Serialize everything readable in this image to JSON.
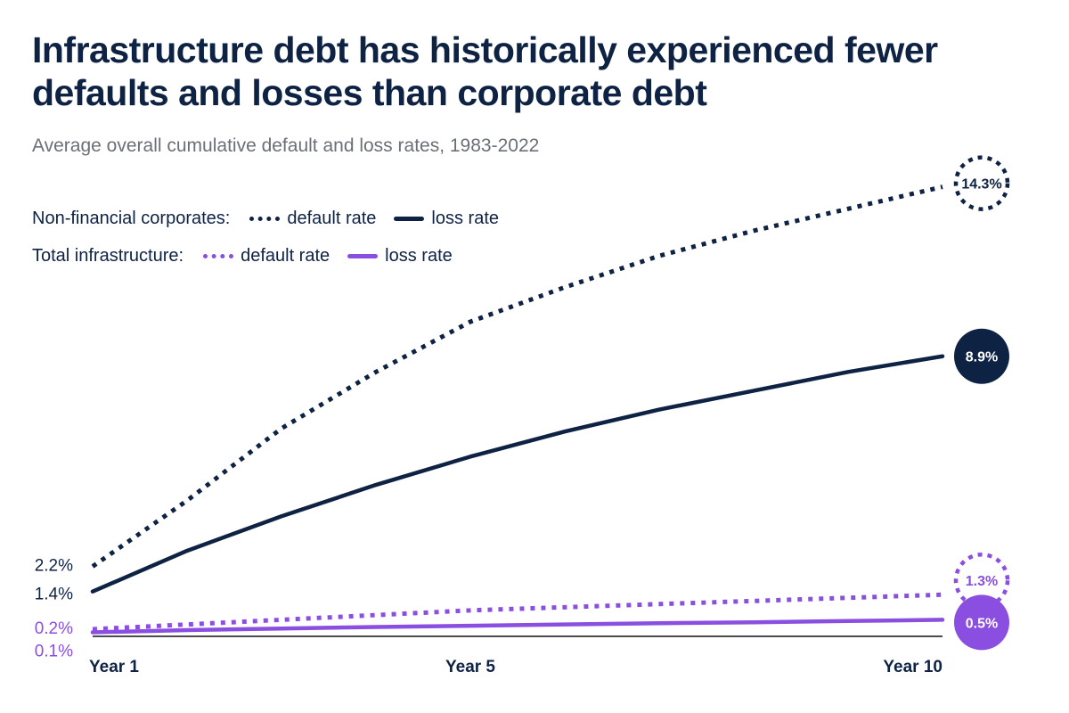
{
  "header": {
    "title": "Infrastructure debt has historically experienced fewer defaults and losses than corporate debt",
    "subtitle": "Average overall cumulative default and loss rates, 1983-2022"
  },
  "legend": {
    "groups": [
      {
        "label": "Non-financial corporates:",
        "default_label": "default rate",
        "loss_label": "loss rate",
        "color": "#0e2244"
      },
      {
        "label": "Total infrastructure:",
        "default_label": "default rate",
        "loss_label": "loss rate",
        "color": "#8a4fe0"
      }
    ]
  },
  "chart_data": {
    "type": "line",
    "x": [
      1,
      2,
      3,
      4,
      5,
      6,
      7,
      8,
      9,
      10
    ],
    "x_tick_labels": {
      "1": "Year 1",
      "5": "Year 5",
      "10": "Year 10"
    },
    "ylim": [
      0,
      15
    ],
    "grid": false,
    "series": [
      {
        "group": "Non-financial corporates",
        "metric": "default rate",
        "style": "dotted",
        "color": "#0e2244",
        "values": [
          2.2,
          4.3,
          6.6,
          8.4,
          10.0,
          11.1,
          12.1,
          12.9,
          13.6,
          14.3
        ],
        "start_label": "2.2%",
        "end_label": "14.3%"
      },
      {
        "group": "Non-financial corporates",
        "metric": "loss rate",
        "style": "solid",
        "color": "#0e2244",
        "values": [
          1.4,
          2.7,
          3.8,
          4.8,
          5.7,
          6.5,
          7.2,
          7.8,
          8.4,
          8.9
        ],
        "start_label": "1.4%",
        "end_label": "8.9%"
      },
      {
        "group": "Total infrastructure",
        "metric": "default rate",
        "style": "dotted",
        "color": "#8a4fe0",
        "values": [
          0.2,
          0.35,
          0.5,
          0.65,
          0.8,
          0.9,
          1.0,
          1.1,
          1.2,
          1.3
        ],
        "start_label": "0.2%",
        "end_label": "1.3%"
      },
      {
        "group": "Total infrastructure",
        "metric": "loss rate",
        "style": "solid",
        "color": "#8a4fe0",
        "values": [
          0.1,
          0.17,
          0.22,
          0.27,
          0.31,
          0.35,
          0.39,
          0.42,
          0.46,
          0.5
        ],
        "start_label": "0.1%",
        "end_label": "0.5%"
      }
    ]
  }
}
